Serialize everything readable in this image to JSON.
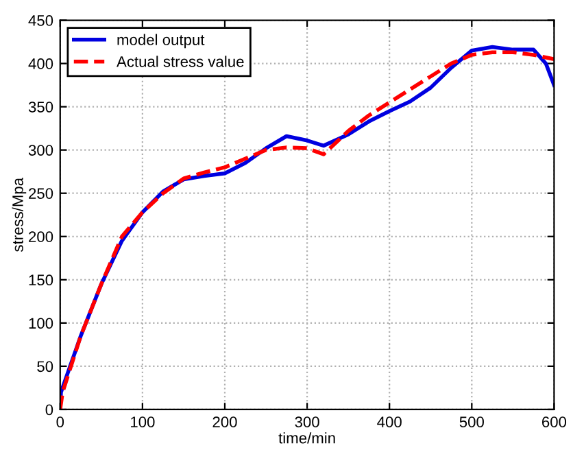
{
  "chart_data": {
    "type": "line",
    "xlabel": "time/min",
    "ylabel": "stress/Mpa",
    "xlim": [
      0,
      600
    ],
    "ylim": [
      0,
      450
    ],
    "xticks": [
      0,
      100,
      200,
      300,
      400,
      500,
      600
    ],
    "yticks": [
      0,
      50,
      100,
      150,
      200,
      250,
      300,
      350,
      400,
      450
    ],
    "grid": true,
    "legend": "top left",
    "marker": "none",
    "series": [
      {
        "name": "model output",
        "color": "#0000e0",
        "line_style": "solid",
        "x": [
          0,
          1,
          25,
          50,
          75,
          100,
          125,
          150,
          175,
          200,
          225,
          250,
          275,
          300,
          320,
          350,
          375,
          400,
          425,
          450,
          475,
          500,
          525,
          550,
          575,
          590,
          600
        ],
        "values": [
          0,
          20,
          85,
          145,
          195,
          228,
          252,
          266,
          270,
          273,
          285,
          302,
          316,
          311,
          305,
          318,
          333,
          345,
          356,
          372,
          395,
          415,
          419,
          416,
          416,
          400,
          375
        ]
      },
      {
        "name": "Actual stress value",
        "color": "#ff0000",
        "line_style": "dashed",
        "x": [
          0,
          3,
          25,
          50,
          75,
          100,
          125,
          150,
          175,
          200,
          225,
          250,
          275,
          300,
          320,
          350,
          375,
          400,
          425,
          450,
          475,
          500,
          525,
          550,
          575,
          600
        ],
        "values": [
          0,
          20,
          85,
          145,
          200,
          228,
          250,
          267,
          274,
          280,
          290,
          300,
          303,
          302,
          295,
          322,
          340,
          355,
          370,
          385,
          400,
          410,
          413,
          413,
          410,
          405
        ]
      }
    ]
  }
}
